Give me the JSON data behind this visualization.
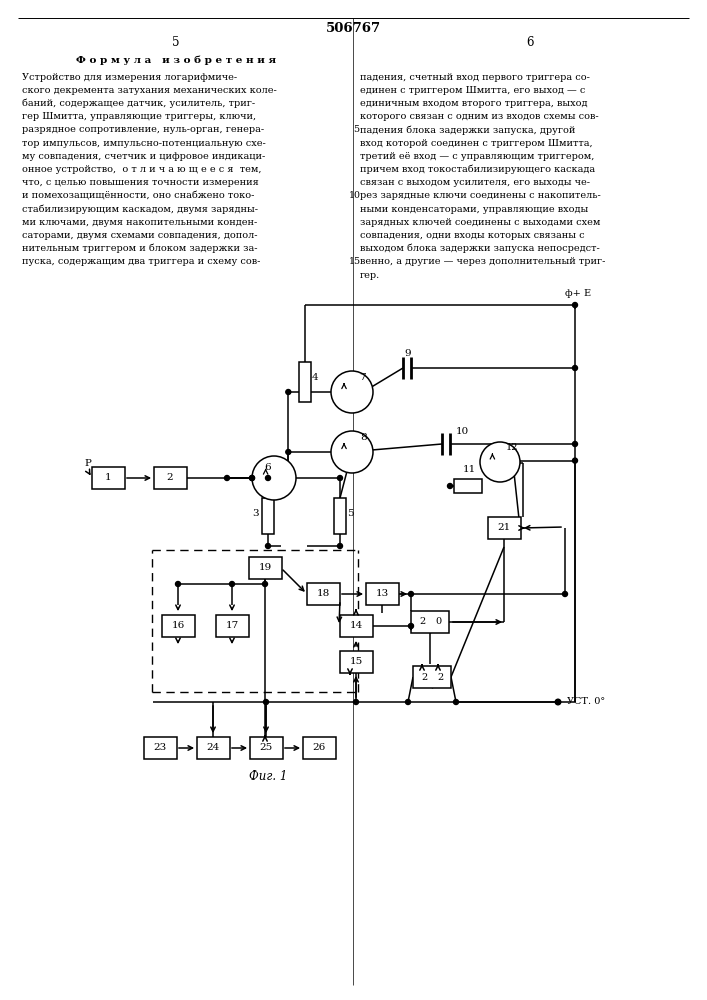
{
  "title": "506767",
  "background_color": "#ffffff",
  "line_color": "#000000",
  "text_color": "#000000",
  "fig_caption": "Фиг. 1",
  "left_body": [
    "Устройство для измерения логарифмиче-",
    "ского декремента затухания механических коле-",
    "баний, содержащее датчик, усилитель, триг-",
    "гер Шмитта, управляющие триггеры, ключи,",
    "разрядное сопротивление, нуль-орган, генера-",
    "тор импульсов, импульсно-потенциальную схе-",
    "му совпадения, счетчик и цифровое индикаци-",
    "онное устройство,  о т л и ч а ю щ е е с я  тем,",
    "что, с целью повышения точности измерения",
    "и помехозащищённости, оно снабжено токо-",
    "стабилизирующим каскадом, двумя зарядны-",
    "ми ключами, двумя накопительными конден-",
    "саторами, двумя схемами совпадения, допол-",
    "нительным триггером и блоком задержки за-",
    "пуска, содержащим два триггера и схему сов-"
  ],
  "right_body": [
    "падения, счетный вход первого триггера со-",
    "единен с триггером Шмитта, его выход — с",
    "единичным входом второго триггера, выход",
    "которого связан с одним из входов схемы сов-",
    "падения блока задержки запуска, другой",
    "вход которой соединен с триггером Шмитта,",
    "третий её вход — с управляющим триггером,",
    "причем вход токостабилизирующего каскада",
    "связан с выходом усилителя, его выходы че-",
    "рез зарядные ключи соединены с накопитель-",
    "ными конденсаторами, управляющие входы",
    "зарядных ключей соединены с выходами схем",
    "совпадения, одни входы которых связаны с",
    "выходом блока задержки запуска непосредст-",
    "венно, а другие — через дополнительный триг-",
    "гер."
  ]
}
